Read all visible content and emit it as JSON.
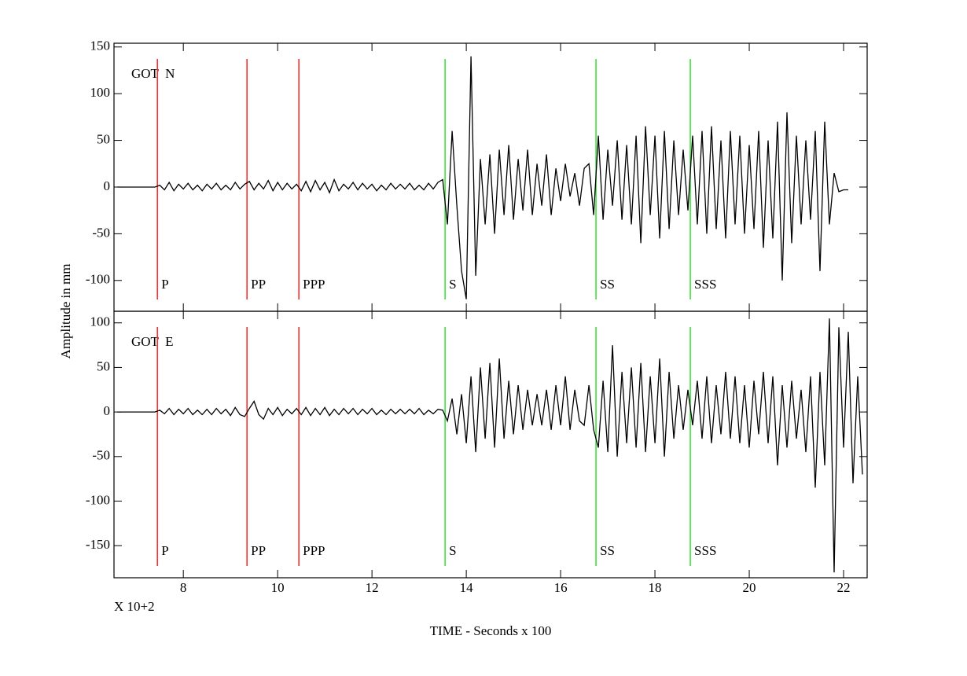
{
  "chart_data": [
    {
      "type": "line",
      "title": "GOT  N",
      "ylabel": "Amplitude in mm",
      "xlim": [
        6.53,
        22.5
      ],
      "ylim": [
        -133,
        154
      ],
      "yticks": [
        -100,
        -50,
        0,
        50,
        100,
        150
      ],
      "series": [
        {
          "color": "#000000",
          "x": [
            6.6,
            6.7,
            6.8,
            6.9,
            7.0,
            7.1,
            7.2,
            7.3,
            7.4,
            7.5,
            7.6,
            7.7,
            7.8,
            7.9,
            8.0,
            8.1,
            8.2,
            8.3,
            8.4,
            8.5,
            8.6,
            8.7,
            8.8,
            8.9,
            9.0,
            9.1,
            9.2,
            9.3,
            9.4,
            9.5,
            9.6,
            9.7,
            9.8,
            9.9,
            10.0,
            10.1,
            10.2,
            10.3,
            10.4,
            10.5,
            10.6,
            10.7,
            10.8,
            10.9,
            11.0,
            11.1,
            11.2,
            11.3,
            11.4,
            11.5,
            11.6,
            11.7,
            11.8,
            11.9,
            12.0,
            12.1,
            12.2,
            12.3,
            12.4,
            12.5,
            12.6,
            12.7,
            12.8,
            12.9,
            13.0,
            13.1,
            13.2,
            13.3,
            13.4,
            13.5,
            13.6,
            13.7,
            13.8,
            13.9,
            14.0,
            14.1,
            14.2,
            14.3,
            14.4,
            14.5,
            14.6,
            14.7,
            14.8,
            14.9,
            15.0,
            15.1,
            15.2,
            15.3,
            15.4,
            15.5,
            15.6,
            15.7,
            15.8,
            15.9,
            16.0,
            16.1,
            16.2,
            16.3,
            16.4,
            16.5,
            16.6,
            16.7,
            16.8,
            16.9,
            17.0,
            17.1,
            17.2,
            17.3,
            17.4,
            17.5,
            17.6,
            17.7,
            17.8,
            17.9,
            18.0,
            18.1,
            18.2,
            18.3,
            18.4,
            18.5,
            18.6,
            18.7,
            18.8,
            18.9,
            19.0,
            19.1,
            19.2,
            19.3,
            19.4,
            19.5,
            19.6,
            19.7,
            19.8,
            19.9,
            20.0,
            20.1,
            20.2,
            20.3,
            20.4,
            20.5,
            20.6,
            20.7,
            20.8,
            20.9,
            21.0,
            21.1,
            21.2,
            21.3,
            21.4,
            21.5,
            21.6,
            21.7,
            21.8,
            21.9,
            22.0,
            22.1
          ],
          "values": [
            0,
            0,
            0,
            0,
            0,
            0,
            0,
            0,
            0,
            2,
            -3,
            5,
            -4,
            3,
            -2,
            4,
            -3,
            2,
            -4,
            3,
            -2,
            4,
            -3,
            2,
            -3,
            5,
            -2,
            3,
            6,
            -3,
            4,
            -2,
            7,
            -4,
            5,
            -3,
            4,
            -2,
            3,
            -4,
            6,
            -5,
            7,
            -3,
            5,
            -6,
            8,
            -4,
            3,
            -2,
            5,
            -3,
            4,
            -2,
            3,
            -4,
            2,
            -3,
            4,
            -2,
            3,
            -2,
            4,
            -3,
            2,
            -3,
            4,
            -2,
            5,
            8,
            -40,
            60,
            -20,
            -90,
            -120,
            140,
            -95,
            30,
            -40,
            35,
            -50,
            40,
            -30,
            45,
            -35,
            30,
            -25,
            40,
            -30,
            25,
            -20,
            35,
            -30,
            20,
            -15,
            25,
            -10,
            15,
            -20,
            20,
            25,
            -30,
            55,
            -35,
            40,
            -20,
            50,
            -35,
            45,
            -40,
            55,
            -60,
            65,
            -30,
            55,
            -55,
            60,
            -45,
            50,
            -30,
            40,
            -25,
            55,
            -40,
            60,
            -50,
            65,
            -45,
            50,
            -55,
            60,
            -40,
            55,
            -50,
            45,
            -45,
            60,
            -65,
            50,
            -55,
            70,
            -100,
            80,
            -60,
            55,
            -40,
            50,
            -35,
            60,
            -90,
            70,
            -40,
            15,
            -5,
            -3,
            -3
          ]
        }
      ],
      "phases": [
        {
          "label": "P",
          "x": 7.45,
          "color": "#ff2020"
        },
        {
          "label": "PP",
          "x": 9.35,
          "color": "#ff2020"
        },
        {
          "label": "PPP",
          "x": 10.45,
          "color": "#ff2020"
        },
        {
          "label": "S",
          "x": 13.55,
          "color": "#30e030"
        },
        {
          "label": "SS",
          "x": 16.75,
          "color": "#30e030"
        },
        {
          "label": "SSS",
          "x": 18.75,
          "color": "#30e030"
        }
      ]
    },
    {
      "type": "line",
      "title": "GOT  E",
      "xlabel": "TIME - Seconds x 100",
      "annotation": "X 10+2",
      "xlim": [
        6.53,
        22.5
      ],
      "xticks": [
        8,
        10,
        12,
        14,
        16,
        18,
        20,
        22
      ],
      "ylim": [
        -186,
        113
      ],
      "yticks": [
        -150,
        -100,
        -50,
        0,
        50,
        100
      ],
      "series": [
        {
          "color": "#000000",
          "x": [
            6.6,
            6.7,
            6.8,
            6.9,
            7.0,
            7.1,
            7.2,
            7.3,
            7.4,
            7.5,
            7.6,
            7.7,
            7.8,
            7.9,
            8.0,
            8.1,
            8.2,
            8.3,
            8.4,
            8.5,
            8.6,
            8.7,
            8.8,
            8.9,
            9.0,
            9.1,
            9.2,
            9.3,
            9.4,
            9.5,
            9.6,
            9.7,
            9.8,
            9.9,
            10.0,
            10.1,
            10.2,
            10.3,
            10.4,
            10.5,
            10.6,
            10.7,
            10.8,
            10.9,
            11.0,
            11.1,
            11.2,
            11.3,
            11.4,
            11.5,
            11.6,
            11.7,
            11.8,
            11.9,
            12.0,
            12.1,
            12.2,
            12.3,
            12.4,
            12.5,
            12.6,
            12.7,
            12.8,
            12.9,
            13.0,
            13.1,
            13.2,
            13.3,
            13.4,
            13.5,
            13.6,
            13.7,
            13.8,
            13.9,
            14.0,
            14.1,
            14.2,
            14.3,
            14.4,
            14.5,
            14.6,
            14.7,
            14.8,
            14.9,
            15.0,
            15.1,
            15.2,
            15.3,
            15.4,
            15.5,
            15.6,
            15.7,
            15.8,
            15.9,
            16.0,
            16.1,
            16.2,
            16.3,
            16.4,
            16.5,
            16.6,
            16.7,
            16.8,
            16.9,
            17.0,
            17.1,
            17.2,
            17.3,
            17.4,
            17.5,
            17.6,
            17.7,
            17.8,
            17.9,
            18.0,
            18.1,
            18.2,
            18.3,
            18.4,
            18.5,
            18.6,
            18.7,
            18.8,
            18.9,
            19.0,
            19.1,
            19.2,
            19.3,
            19.4,
            19.5,
            19.6,
            19.7,
            19.8,
            19.9,
            20.0,
            20.1,
            20.2,
            20.3,
            20.4,
            20.5,
            20.6,
            20.7,
            20.8,
            20.9,
            21.0,
            21.1,
            21.2,
            21.3,
            21.4,
            21.5,
            21.6,
            21.7,
            21.8,
            21.9,
            22.0,
            22.1,
            22.2,
            22.3,
            22.4
          ],
          "values": [
            0,
            0,
            0,
            0,
            0,
            0,
            0,
            0,
            0,
            2,
            -2,
            4,
            -3,
            3,
            -2,
            4,
            -3,
            2,
            -3,
            3,
            -3,
            4,
            -2,
            3,
            -4,
            5,
            -3,
            -5,
            4,
            12,
            -3,
            -8,
            4,
            -3,
            5,
            -4,
            3,
            -2,
            4,
            -3,
            5,
            -4,
            4,
            -3,
            5,
            -4,
            3,
            -3,
            4,
            -2,
            4,
            -3,
            3,
            -2,
            4,
            -3,
            2,
            -3,
            3,
            -2,
            3,
            -2,
            3,
            -2,
            4,
            -3,
            2,
            -2,
            3,
            2,
            -10,
            15,
            -25,
            20,
            -35,
            40,
            -45,
            50,
            -30,
            55,
            -40,
            60,
            -30,
            35,
            -25,
            30,
            -20,
            25,
            -15,
            20,
            -15,
            25,
            -20,
            30,
            -15,
            40,
            -20,
            25,
            -10,
            -15,
            30,
            -20,
            -40,
            35,
            -45,
            75,
            -50,
            45,
            -35,
            50,
            -40,
            55,
            -45,
            40,
            -35,
            60,
            -50,
            45,
            -30,
            30,
            -20,
            25,
            -15,
            35,
            -30,
            40,
            -35,
            30,
            -25,
            45,
            -30,
            40,
            -35,
            30,
            -40,
            35,
            -25,
            45,
            -35,
            40,
            -60,
            30,
            -40,
            35,
            -30,
            25,
            -45,
            40,
            -85,
            45,
            -60,
            105,
            -180,
            95,
            -40,
            90,
            -80,
            40,
            -70
          ]
        }
      ],
      "phases": [
        {
          "label": "P",
          "x": 7.45,
          "color": "#ff2020"
        },
        {
          "label": "PP",
          "x": 9.35,
          "color": "#ff2020"
        },
        {
          "label": "PPP",
          "x": 10.45,
          "color": "#ff2020"
        },
        {
          "label": "S",
          "x": 13.55,
          "color": "#30e030"
        },
        {
          "label": "SS",
          "x": 16.75,
          "color": "#30e030"
        },
        {
          "label": "SSS",
          "x": 18.75,
          "color": "#30e030"
        }
      ]
    }
  ]
}
